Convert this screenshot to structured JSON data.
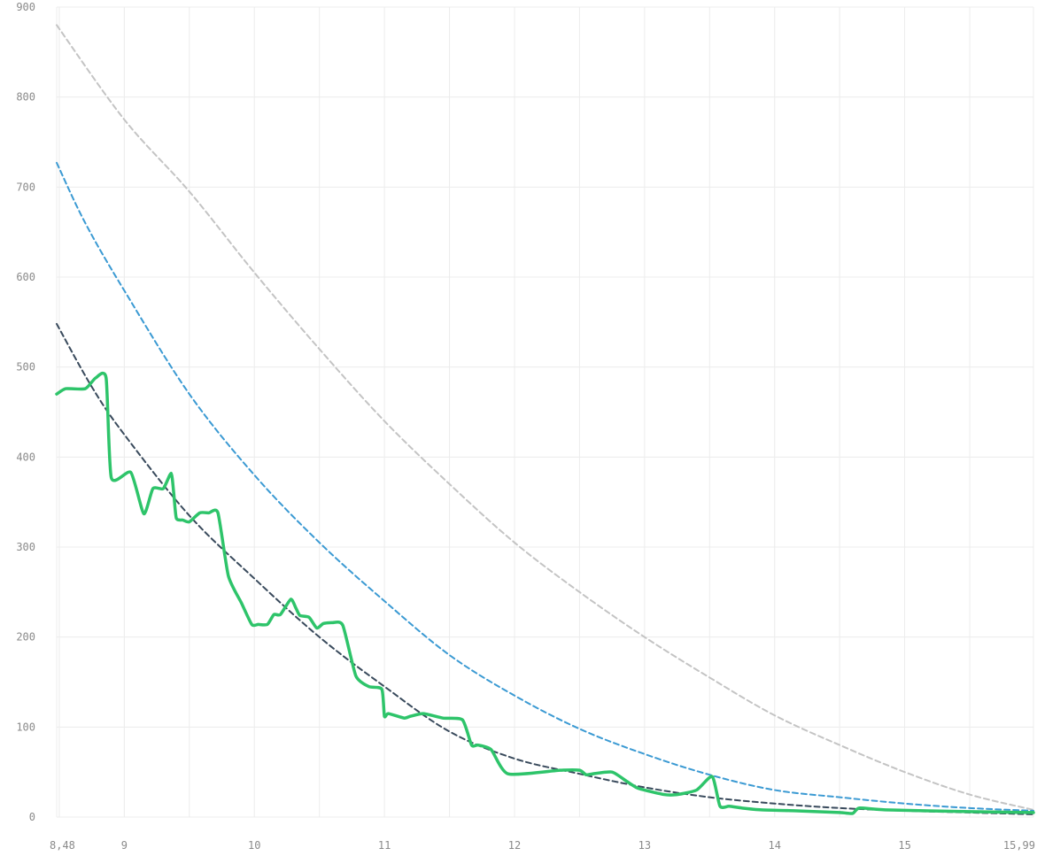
{
  "chart_data": {
    "type": "line",
    "title": "",
    "xlabel": "",
    "ylabel": "",
    "xlim": [
      8.48,
      15.99
    ],
    "ylim": [
      0,
      900
    ],
    "grid": true,
    "legend": "none",
    "x_ticks": [
      {
        "value": 8.48,
        "label": "8,48"
      },
      {
        "value": 9,
        "label": "9"
      },
      {
        "value": 10,
        "label": "10"
      },
      {
        "value": 11,
        "label": "11"
      },
      {
        "value": 12,
        "label": "12"
      },
      {
        "value": 13,
        "label": "13"
      },
      {
        "value": 14,
        "label": "14"
      },
      {
        "value": 15,
        "label": "15"
      },
      {
        "value": 15.99,
        "label": "15,99"
      }
    ],
    "x_minor_grid": [
      8.5,
      9.5,
      10.5,
      11.5,
      12.5,
      13.5,
      14.5,
      15.5
    ],
    "y_ticks": [
      {
        "value": 0,
        "label": "0"
      },
      {
        "value": 100,
        "label": "100"
      },
      {
        "value": 200,
        "label": "200"
      },
      {
        "value": 300,
        "label": "300"
      },
      {
        "value": 400,
        "label": "400"
      },
      {
        "value": 500,
        "label": "500"
      },
      {
        "value": 600,
        "label": "600"
      },
      {
        "value": 700,
        "label": "700"
      },
      {
        "value": 800,
        "label": "800"
      },
      {
        "value": 900,
        "label": "900"
      }
    ],
    "series": [
      {
        "style": "dashed",
        "color": "#c4c4c4",
        "x": [
          8.48,
          9,
          9.5,
          10,
          10.5,
          11,
          11.5,
          12,
          12.5,
          13,
          13.5,
          14,
          14.5,
          15,
          15.5,
          15.99
        ],
        "y": [
          880,
          775,
          695,
          605,
          520,
          440,
          370,
          305,
          250,
          200,
          155,
          113,
          80,
          50,
          25,
          8
        ]
      },
      {
        "style": "dashed",
        "color": "#3b9ad3",
        "x": [
          8.48,
          8.7,
          9,
          9.5,
          10,
          10.5,
          11,
          11.5,
          12,
          12.5,
          13,
          13.5,
          14,
          14.5,
          15,
          15.5,
          15.99
        ],
        "y": [
          727,
          660,
          585,
          470,
          380,
          305,
          240,
          180,
          135,
          98,
          70,
          47,
          30,
          22,
          15,
          10,
          7
        ]
      },
      {
        "style": "dashed",
        "color": "#394a5c",
        "x": [
          8.48,
          8.75,
          9,
          9.5,
          10,
          10.5,
          11,
          11.5,
          12,
          12.5,
          13,
          13.5,
          14,
          14.5,
          15,
          15.5,
          15.99
        ],
        "y": [
          548,
          478,
          425,
          335,
          265,
          200,
          145,
          95,
          65,
          48,
          33,
          22,
          15,
          10,
          7,
          5,
          3
        ]
      },
      {
        "style": "solid",
        "color": "#2ec46a",
        "x": [
          8.48,
          8.55,
          8.7,
          8.78,
          8.86,
          8.9,
          9.05,
          9.15,
          9.22,
          9.3,
          9.36,
          9.38,
          9.4,
          9.45,
          9.5,
          9.58,
          9.65,
          9.72,
          9.8,
          9.9,
          9.98,
          10.03,
          10.1,
          10.15,
          10.2,
          10.28,
          10.32,
          10.35,
          10.42,
          10.48,
          10.53,
          10.6,
          10.68,
          10.78,
          10.88,
          10.98,
          11.0,
          11.03,
          11.15,
          11.2,
          11.3,
          11.45,
          11.6,
          11.67,
          11.72,
          11.82,
          11.95,
          12.35,
          12.5,
          12.55,
          12.6,
          12.75,
          12.86,
          12.95,
          13.15,
          13.25,
          13.4,
          13.52,
          13.58,
          13.65,
          13.75,
          13.9,
          14.15,
          14.5,
          14.6,
          14.65,
          14.85,
          15.5,
          15.99
        ],
        "y": [
          470,
          476,
          476,
          488,
          488,
          377,
          383,
          337,
          365,
          365,
          382,
          360,
          332,
          330,
          328,
          338,
          338,
          338,
          268,
          238,
          214,
          214,
          214,
          225,
          225,
          242,
          232,
          224,
          222,
          210,
          215,
          216,
          213,
          157,
          145,
          142,
          112,
          115,
          110,
          112,
          115,
          110,
          108,
          80,
          80,
          75,
          48,
          52,
          52,
          47,
          48,
          50,
          40,
          32,
          25,
          25,
          30,
          45,
          12,
          12,
          10,
          8,
          7,
          5,
          4,
          10,
          8,
          6,
          5
        ]
      }
    ]
  }
}
